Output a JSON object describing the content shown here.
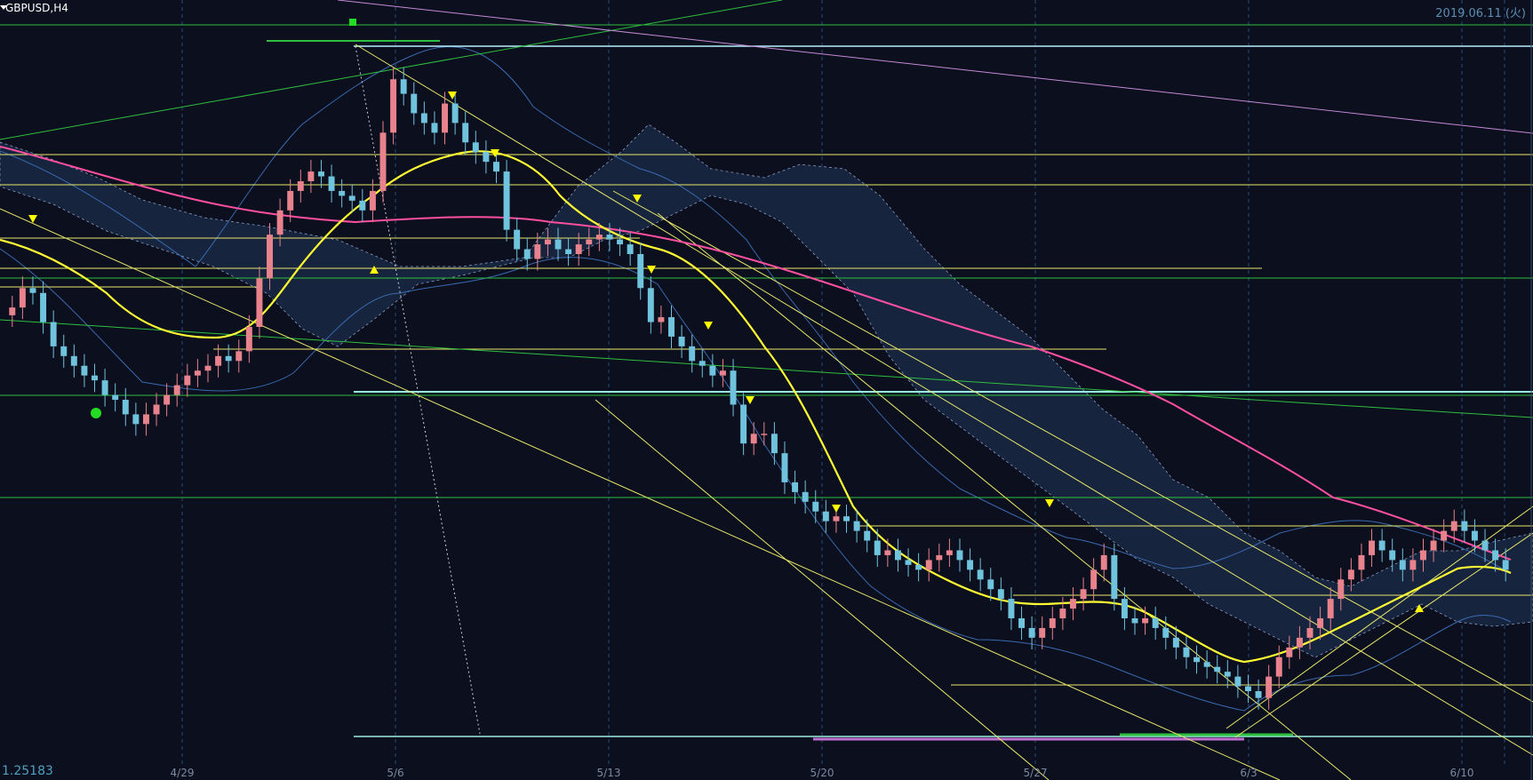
{
  "header": {
    "symbol": "GBPUSD,H4",
    "date": "2019.06.11 (火)"
  },
  "footer": {
    "price": "1.25183"
  },
  "chart_data": {
    "type": "candlestick",
    "x_tick_labels": [
      "4/29",
      "5/6",
      "5/13",
      "5/20",
      "5/27",
      "6/3",
      "6/10"
    ],
    "colors": {
      "background": "#0b0f1e",
      "up_candle": "#e8828c",
      "down_candle": "#6fc3dd",
      "sma_short": "#ffff33",
      "sma_long": "#ff4fa0",
      "cloud_fill": "#1a2a45",
      "bollinger": "#3a6ab0",
      "horizontal_yellow": "#e8e86a",
      "horizontal_green": "#2fbf3f",
      "horizontal_cyan": "#b8f0ff",
      "marker_up": "#ffff00",
      "marker_down": "#ffff00"
    },
    "close_series": [
      1.292,
      1.294,
      1.2935,
      1.2905,
      1.288,
      1.287,
      1.286,
      1.285,
      1.2845,
      1.283,
      1.2825,
      1.281,
      1.28,
      1.281,
      1.282,
      1.283,
      1.284,
      1.285,
      1.2855,
      1.286,
      1.287,
      1.2865,
      1.2875,
      1.29,
      1.295,
      1.2995,
      1.302,
      1.304,
      1.305,
      1.306,
      1.3055,
      1.304,
      1.3035,
      1.303,
      1.302,
      1.304,
      1.31,
      1.3155,
      1.314,
      1.312,
      1.311,
      1.31,
      1.313,
      1.311,
      1.309,
      1.308,
      1.307,
      1.306,
      1.3,
      1.298,
      1.297,
      1.2985,
      1.299,
      1.298,
      1.2975,
      1.2985,
      1.299,
      1.2995,
      1.299,
      1.2985,
      1.2975,
      1.294,
      1.2905,
      1.291,
      1.289,
      1.288,
      1.2865,
      1.286,
      1.285,
      1.2855,
      1.282,
      1.278,
      1.279,
      1.279,
      1.277,
      1.274,
      1.273,
      1.272,
      1.271,
      1.27,
      1.2705,
      1.27,
      1.269,
      1.268,
      1.2665,
      1.267,
      1.266,
      1.2655,
      1.265,
      1.266,
      1.2665,
      1.267,
      1.266,
      1.265,
      1.264,
      1.263,
      1.262,
      1.26,
      1.259,
      1.258,
      1.259,
      1.26,
      1.261,
      1.262,
      1.263,
      1.265,
      1.2665,
      1.262,
      1.26,
      1.2595,
      1.26,
      1.259,
      1.258,
      1.257,
      1.256,
      1.2555,
      1.255,
      1.2545,
      1.254,
      1.253,
      1.2525,
      1.2518,
      1.254,
      1.256,
      1.257,
      1.258,
      1.259,
      1.26,
      1.262,
      1.264,
      1.265,
      1.2665,
      1.268,
      1.267,
      1.266,
      1.265,
      1.266,
      1.267,
      1.268,
      1.269,
      1.27,
      1.269,
      1.268,
      1.267,
      1.266,
      1.265
    ],
    "markers": [
      {
        "type": "down",
        "label": "▼"
      },
      {
        "type": "up",
        "label": "▲"
      }
    ]
  }
}
